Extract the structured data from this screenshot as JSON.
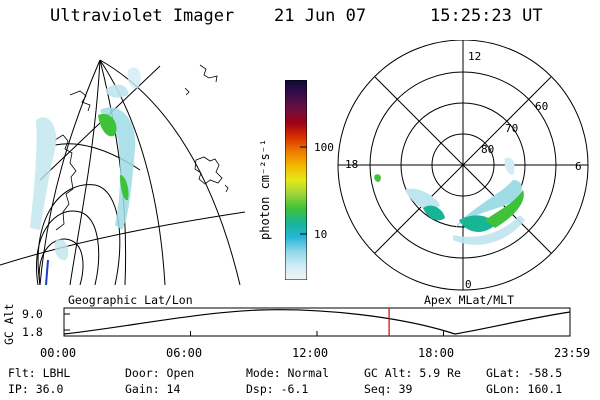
{
  "header": {
    "instrument": "Ultraviolet Imager",
    "date": "21 Jun 07",
    "time": "15:25:23 UT"
  },
  "panels": {
    "left_projection": "Geographic Lat/Lon",
    "right_projection": "Apex MLat/MLT"
  },
  "colorbar": {
    "label": "photon cm⁻²s⁻¹",
    "ticks": [
      "100",
      "10"
    ],
    "colors": [
      "#0b0b33",
      "#3a0d4a",
      "#6a1040",
      "#a00018",
      "#d83000",
      "#ee7a00",
      "#f2b800",
      "#e6e81a",
      "#9ad43a",
      "#3ec23a",
      "#18b496",
      "#27b6d8",
      "#8fd6ea",
      "#d0ecf4",
      "#f0f6f8"
    ]
  },
  "polar_plot": {
    "mlt_labels": {
      "top": "12",
      "right": "6",
      "left": "18",
      "bottom": "0"
    },
    "lat_labels": [
      "60",
      "70",
      "80"
    ]
  },
  "altitude_plot": {
    "ylabel": "GC Alt",
    "yticks": [
      "9.0",
      "1.8"
    ],
    "xticks": [
      "00:00",
      "06:00",
      "12:00",
      "18:00",
      "23:59"
    ],
    "current_time_marker_hours": 15.42,
    "cursor_color": "#cc0000"
  },
  "status": {
    "flt": "Flt: LBHL",
    "ip": "IP: 36.0",
    "door": "Door: Open",
    "gain": "Gain: 14",
    "mode": "Mode: Normal",
    "dsp": "Dsp:   -6.1",
    "gc_alt": "GC Alt: 5.9 Re",
    "seq": "Seq: 39",
    "glat": "GLat: -58.5",
    "glon": "GLon: 160.1"
  }
}
